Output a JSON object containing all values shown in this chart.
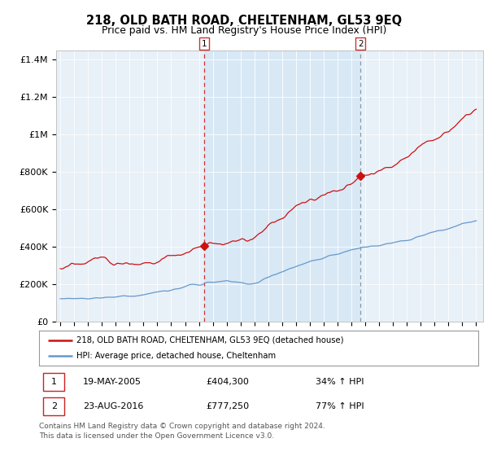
{
  "title": "218, OLD BATH ROAD, CHELTENHAM, GL53 9EQ",
  "subtitle": "Price paid vs. HM Land Registry's House Price Index (HPI)",
  "ylim": [
    0,
    1450000
  ],
  "sale1_year": 2005.38,
  "sale1_price": 404300,
  "sale2_year": 2016.65,
  "sale2_price": 777250,
  "house_color": "#cc1111",
  "hpi_color": "#6699cc",
  "vline1_color": "#cc3333",
  "vline2_color": "#8899aa",
  "shade_color": "#d8e8f5",
  "plot_bg": "#e8f0f8",
  "legend_line1": "218, OLD BATH ROAD, CHELTENHAM, GL53 9EQ (detached house)",
  "legend_line2": "HPI: Average price, detached house, Cheltenham",
  "annotation1_date": "19-MAY-2005",
  "annotation1_price": "£404,300",
  "annotation1_pct": "34% ↑ HPI",
  "annotation2_date": "23-AUG-2016",
  "annotation2_price": "£777,250",
  "annotation2_pct": "77% ↑ HPI",
  "footer": "Contains HM Land Registry data © Crown copyright and database right 2024.\nThis data is licensed under the Open Government Licence v3.0."
}
